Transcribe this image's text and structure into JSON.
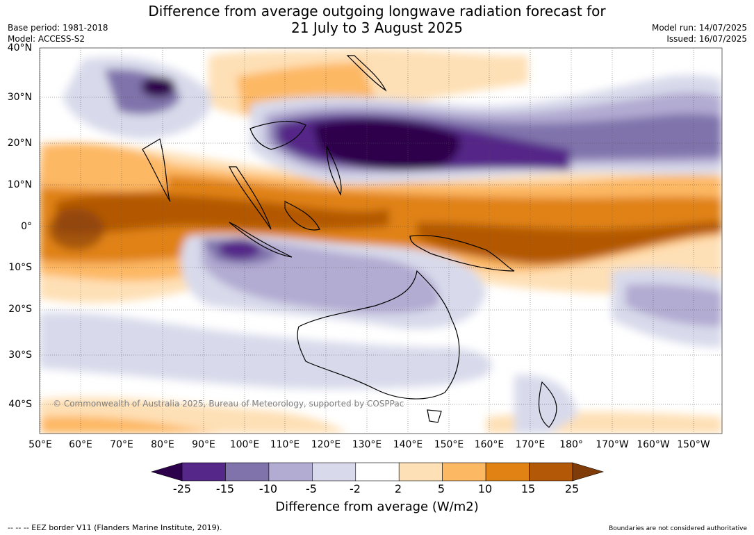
{
  "title_line1": "Difference from average outgoing longwave radiation forecast for",
  "title_line2": "21 July to 3 August 2025",
  "base_period": "Base period: 1981-2018",
  "model": "Model: ACCESS-S2",
  "model_run": "Model run: 14/07/2025",
  "issued": "Issued: 16/07/2025",
  "copyright": "© Commonwealth of Australia 2025, Bureau of Meteorology, supported by COSPPac",
  "footer_left": "--  --  -- EEZ border V11 (Flanders Marine Institute, 2019).",
  "footer_right": "Boundaries are not considered authoritative",
  "lat_labels": [
    "40°N",
    "30°N",
    "20°N",
    "10°N",
    "0°",
    "10°S",
    "20°S",
    "30°S",
    "40°S"
  ],
  "lon_labels": [
    "50°E",
    "60°E",
    "70°E",
    "80°E",
    "90°E",
    "100°E",
    "110°E",
    "120°E",
    "130°E",
    "140°E",
    "150°E",
    "160°E",
    "170°E",
    "180°",
    "170°W",
    "160°W",
    "150°W"
  ],
  "colorbar": {
    "title": "Difference from average (W/m2)",
    "tick_labels": [
      "-25",
      "-15",
      "-10",
      "-5",
      "-2",
      "2",
      "5",
      "10",
      "15",
      "25"
    ],
    "colors": [
      "#2d004b",
      "#542788",
      "#8073ac",
      "#b2abd2",
      "#d8daeb",
      "#ffffff",
      "#fee0b6",
      "#fdb863",
      "#e08214",
      "#b35806",
      "#7f3b08"
    ]
  }
}
